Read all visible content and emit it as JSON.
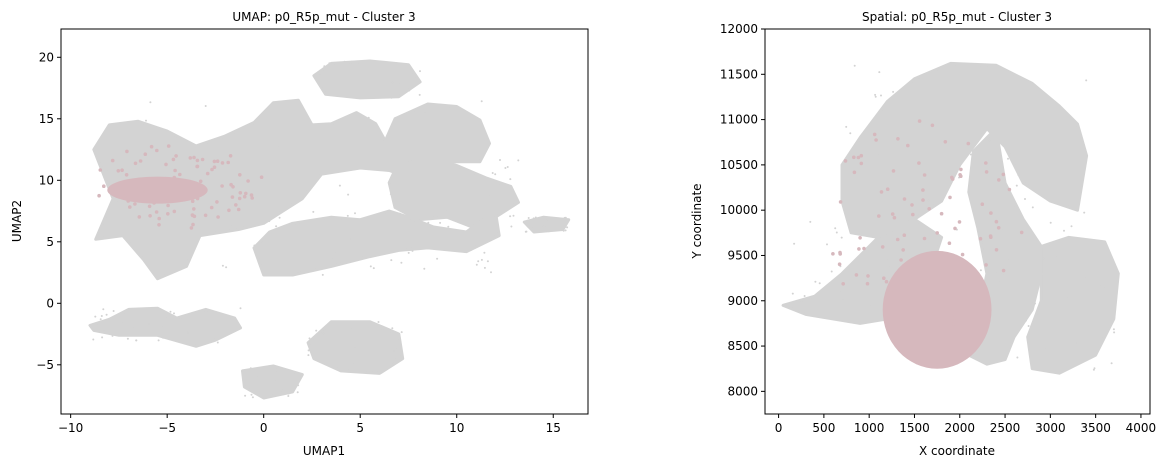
{
  "chart_data": [
    {
      "type": "scatter",
      "title": "UMAP: p0_R5p_mut - Cluster 3",
      "xlabel": "UMAP1",
      "ylabel": "UMAP2",
      "xlim": [
        -10.5,
        16.8
      ],
      "ylim": [
        -9.0,
        22.3
      ],
      "xticks": [
        -10,
        -5,
        0,
        5,
        10,
        15
      ],
      "yticks": [
        -5,
        0,
        5,
        10,
        15,
        20
      ],
      "grid": false,
      "background_color": "#d3d3d3",
      "highlight_color": "#d6b8bd",
      "background_regions": [
        {
          "name": "central-left",
          "polygon": [
            [
              -8.7,
              5.2
            ],
            [
              -7.8,
              8.5
            ],
            [
              -8.8,
              12.5
            ],
            [
              -8.0,
              14.5
            ],
            [
              -6.5,
              14.8
            ],
            [
              -5.0,
              14.0
            ],
            [
              -3.5,
              12.8
            ],
            [
              -2.0,
              13.6
            ],
            [
              -0.5,
              14.7
            ],
            [
              0.5,
              16.3
            ],
            [
              1.8,
              16.5
            ],
            [
              2.5,
              14.5
            ],
            [
              3.5,
              14.6
            ],
            [
              4.8,
              15.5
            ],
            [
              5.8,
              14.6
            ],
            [
              6.3,
              13.2
            ],
            [
              6.8,
              15.0
            ],
            [
              8.5,
              16.2
            ],
            [
              10.0,
              16.0
            ],
            [
              11.2,
              14.9
            ],
            [
              11.7,
              13.0
            ],
            [
              11.2,
              11.5
            ],
            [
              9.5,
              11.5
            ],
            [
              8.0,
              10.0
            ],
            [
              6.5,
              10.8
            ],
            [
              5.0,
              11.0
            ],
            [
              3.0,
              10.5
            ],
            [
              2.0,
              8.5
            ],
            [
              1.0,
              7.5
            ],
            [
              0.0,
              6.5
            ],
            [
              -1.3,
              6.0
            ],
            [
              -3.3,
              5.5
            ],
            [
              -4.0,
              3.0
            ],
            [
              -5.5,
              2.0
            ],
            [
              -6.2,
              3.5
            ],
            [
              -7.3,
              5.5
            ]
          ]
        },
        {
          "name": "top-blob",
          "polygon": [
            [
              2.6,
              18.5
            ],
            [
              3.5,
              19.5
            ],
            [
              5.5,
              19.7
            ],
            [
              7.5,
              19.4
            ],
            [
              8.1,
              18.0
            ],
            [
              7.0,
              16.8
            ],
            [
              5.0,
              16.7
            ],
            [
              3.2,
              17.0
            ]
          ]
        },
        {
          "name": "right-upper-band",
          "polygon": [
            [
              7.0,
              11.5
            ],
            [
              8.5,
              12.0
            ],
            [
              10.0,
              11.2
            ],
            [
              11.5,
              10.2
            ],
            [
              12.8,
              9.5
            ],
            [
              13.2,
              8.2
            ],
            [
              12.0,
              7.0
            ],
            [
              10.8,
              6.2
            ],
            [
              9.5,
              7.0
            ],
            [
              8.0,
              6.8
            ],
            [
              6.8,
              7.8
            ],
            [
              6.5,
              9.8
            ]
          ]
        },
        {
          "name": "middle-band",
          "polygon": [
            [
              0.3,
              5.8
            ],
            [
              1.5,
              6.5
            ],
            [
              3.5,
              7.0
            ],
            [
              5.0,
              6.8
            ],
            [
              6.5,
              7.5
            ],
            [
              7.5,
              7.0
            ],
            [
              8.8,
              6.2
            ],
            [
              10.5,
              5.8
            ],
            [
              12.0,
              7.5
            ],
            [
              12.2,
              5.5
            ],
            [
              10.5,
              4.2
            ],
            [
              8.5,
              4.5
            ],
            [
              7.0,
              4.3
            ],
            [
              5.5,
              3.8
            ],
            [
              3.5,
              3.0
            ],
            [
              1.5,
              2.3
            ],
            [
              0.0,
              2.3
            ],
            [
              -0.5,
              4.5
            ]
          ]
        },
        {
          "name": "far-right-island",
          "polygon": [
            [
              13.5,
              6.6
            ],
            [
              14.5,
              7.0
            ],
            [
              15.8,
              6.8
            ],
            [
              15.5,
              6.0
            ],
            [
              14.0,
              5.8
            ]
          ]
        },
        {
          "name": "lower-left-strip",
          "polygon": [
            [
              -9.0,
              -1.8
            ],
            [
              -8.0,
              -1.3
            ],
            [
              -7.0,
              -0.5
            ],
            [
              -5.5,
              -0.4
            ],
            [
              -4.5,
              -1.2
            ],
            [
              -3.0,
              -0.5
            ],
            [
              -1.5,
              -1.2
            ],
            [
              -1.2,
              -2.0
            ],
            [
              -2.5,
              -3.0
            ],
            [
              -3.5,
              -3.5
            ],
            [
              -5.5,
              -2.6
            ],
            [
              -7.5,
              -2.6
            ],
            [
              -8.8,
              -2.2
            ]
          ]
        },
        {
          "name": "lower-right-blob",
          "polygon": [
            [
              2.3,
              -3.2
            ],
            [
              3.5,
              -1.5
            ],
            [
              5.5,
              -1.5
            ],
            [
              7.0,
              -2.5
            ],
            [
              7.2,
              -4.5
            ],
            [
              6.0,
              -5.7
            ],
            [
              4.0,
              -5.5
            ],
            [
              2.6,
              -4.5
            ]
          ]
        },
        {
          "name": "bottom-blob",
          "polygon": [
            [
              -1.1,
              -5.5
            ],
            [
              0.5,
              -5.1
            ],
            [
              2.0,
              -5.8
            ],
            [
              1.5,
              -7.2
            ],
            [
              0.0,
              -7.7
            ],
            [
              -1.0,
              -6.8
            ]
          ]
        }
      ],
      "highlight_regions": [
        {
          "name": "dense-cluster",
          "center": [
            -5.5,
            9.2
          ],
          "radius": [
            2.6,
            1.1
          ]
        },
        {
          "name": "scatter-cloud",
          "center": [
            -4.5,
            9.5
          ],
          "radius": [
            4.5,
            3.5
          ]
        }
      ]
    },
    {
      "type": "scatter",
      "title": "Spatial: p0_R5p_mut - Cluster 3",
      "xlabel": "X coordinate",
      "ylabel": "Y coordinate",
      "xlim": [
        -150,
        4100
      ],
      "ylim": [
        7750,
        12000
      ],
      "xticks": [
        0,
        500,
        1000,
        1500,
        2000,
        2500,
        3000,
        3500,
        4000
      ],
      "yticks": [
        8000,
        8500,
        9000,
        9500,
        10000,
        10500,
        11000,
        11500,
        12000
      ],
      "grid": false,
      "background_color": "#d3d3d3",
      "highlight_color": "#d6b8bd",
      "background_regions": [
        {
          "name": "tissue-upper",
          "polygon": [
            [
              700,
              10500
            ],
            [
              900,
              10800
            ],
            [
              1200,
              11200
            ],
            [
              1500,
              11450
            ],
            [
              1900,
              11620
            ],
            [
              2400,
              11600
            ],
            [
              2800,
              11400
            ],
            [
              3100,
              11150
            ],
            [
              3300,
              10950
            ],
            [
              3400,
              10600
            ],
            [
              3300,
              10000
            ],
            [
              3000,
              10100
            ],
            [
              2700,
              10300
            ],
            [
              2500,
              10700
            ],
            [
              2300,
              10900
            ],
            [
              2000,
              10500
            ],
            [
              1800,
              10100
            ],
            [
              1500,
              9900
            ],
            [
              1100,
              9700
            ],
            [
              800,
              9750
            ],
            [
              700,
              10100
            ]
          ]
        },
        {
          "name": "tissue-right-arc",
          "polygon": [
            [
              2150,
              10650
            ],
            [
              2400,
              10900
            ],
            [
              2500,
              10300
            ],
            [
              2700,
              9900
            ],
            [
              2900,
              9600
            ],
            [
              2900,
              9300
            ],
            [
              2800,
              8900
            ],
            [
              2600,
              8600
            ],
            [
              2500,
              8350
            ],
            [
              2300,
              8300
            ],
            [
              2100,
              8400
            ],
            [
              2200,
              8800
            ],
            [
              2300,
              9300
            ],
            [
              2200,
              9800
            ],
            [
              2100,
              10200
            ]
          ]
        },
        {
          "name": "tissue-lower-right",
          "polygon": [
            [
              2900,
              9600
            ],
            [
              3200,
              9700
            ],
            [
              3600,
              9650
            ],
            [
              3750,
              9300
            ],
            [
              3700,
              8800
            ],
            [
              3500,
              8400
            ],
            [
              3100,
              8200
            ],
            [
              2800,
              8250
            ],
            [
              2750,
              8600
            ],
            [
              2900,
              9000
            ]
          ]
        },
        {
          "name": "tissue-lower-left",
          "polygon": [
            [
              50,
              8950
            ],
            [
              400,
              9050
            ],
            [
              700,
              9300
            ],
            [
              900,
              9500
            ],
            [
              1100,
              9700
            ],
            [
              1500,
              9900
            ],
            [
              1800,
              9700
            ],
            [
              1700,
              9400
            ],
            [
              1500,
              9100
            ],
            [
              1200,
              8800
            ],
            [
              900,
              8750
            ],
            [
              600,
              8800
            ],
            [
              300,
              8850
            ]
          ]
        }
      ],
      "highlight_regions": [
        {
          "name": "dense-cluster",
          "center": [
            1750,
            8900
          ],
          "radius": [
            600,
            650
          ]
        },
        {
          "name": "scatter-cloud",
          "center": [
            1600,
            9800
          ],
          "radius": [
            1100,
            1200
          ]
        }
      ]
    }
  ]
}
